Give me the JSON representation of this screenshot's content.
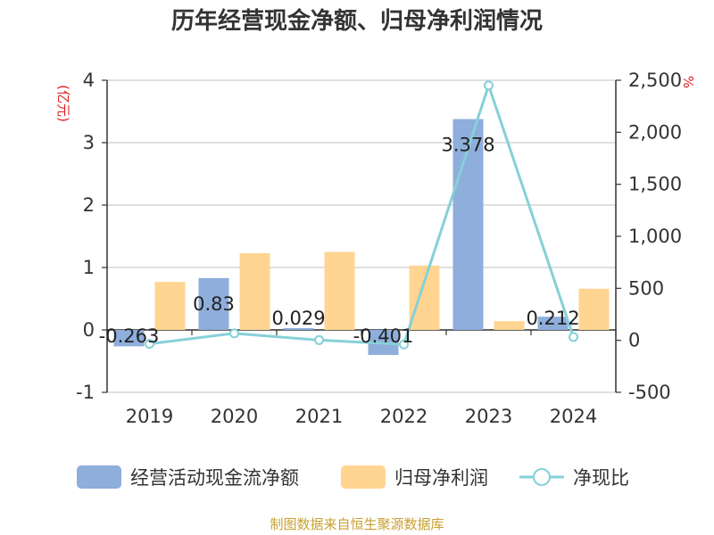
{
  "title": "历年经营现金净额、归母净利润情况",
  "source": "制图数据来自恒生聚源数据库",
  "chart_data": {
    "type": "bar",
    "categories": [
      "2019",
      "2020",
      "2021",
      "2022",
      "2023",
      "2024"
    ],
    "series": [
      {
        "name": "经营活动现金流净额",
        "type": "bar",
        "axis": "left",
        "color": "#8eaedb",
        "values": [
          -0.263,
          0.83,
          0.029,
          -0.401,
          3.378,
          0.212
        ]
      },
      {
        "name": "归母净利润",
        "type": "bar",
        "axis": "left",
        "color": "#ffd591",
        "values": [
          0.77,
          1.23,
          1.25,
          1.03,
          0.14,
          0.66
        ]
      },
      {
        "name": "净现比",
        "type": "line",
        "axis": "right",
        "color": "#86d0d8",
        "values": [
          -34,
          67,
          2,
          -39,
          2450,
          32
        ]
      }
    ],
    "data_labels": [
      "-0.263",
      "0.83",
      "0.029",
      "-0.401",
      "3.378",
      "0.212"
    ],
    "y_left": {
      "unit": "(亿元)",
      "ylim": [
        -1,
        4
      ],
      "ticks": [
        "-1",
        "0",
        "1",
        "2",
        "3",
        "4"
      ]
    },
    "y_right": {
      "unit": "%",
      "ylim": [
        -500,
        2500
      ],
      "ticks": [
        "-500",
        "0",
        "500",
        "1,000",
        "1,500",
        "2,000",
        "2,500"
      ]
    },
    "grid": true,
    "legend_position": "bottom"
  }
}
